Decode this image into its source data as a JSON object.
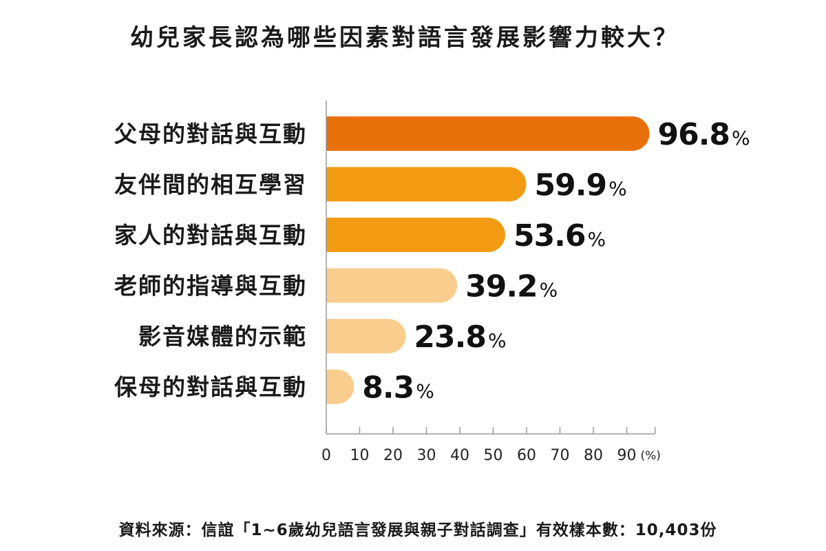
{
  "chart_data": {
    "type": "bar",
    "orientation": "horizontal",
    "title": "幼兒家長認為哪些因素對語言發展影響力較大？",
    "categories": [
      "父母的對話與互動",
      "友伴間的相互學習",
      "家人的對話與互動",
      "老師的指導與互動",
      "影音媒體的示範",
      "保母的對話與互動"
    ],
    "values": [
      96.8,
      59.9,
      53.6,
      39.2,
      23.8,
      8.3
    ],
    "value_unit": "%",
    "colors": [
      "#e8700a",
      "#f29b12",
      "#f29b12",
      "#f8cd8e",
      "#f8cd8e",
      "#f8cd8e"
    ],
    "xlim": [
      0,
      100
    ],
    "xticks": [
      0,
      10,
      20,
      30,
      40,
      50,
      60,
      70,
      80,
      90
    ],
    "xtick_labels": [
      "0",
      "10",
      "20",
      "30",
      "40",
      "50",
      "60",
      "70",
      "80",
      "90"
    ],
    "xunit_label": "(%)",
    "grid": false,
    "source": "資料來源：信誼「1~6歲幼兒語言發展與親子對話調查」有效樣本數：10,403份"
  }
}
